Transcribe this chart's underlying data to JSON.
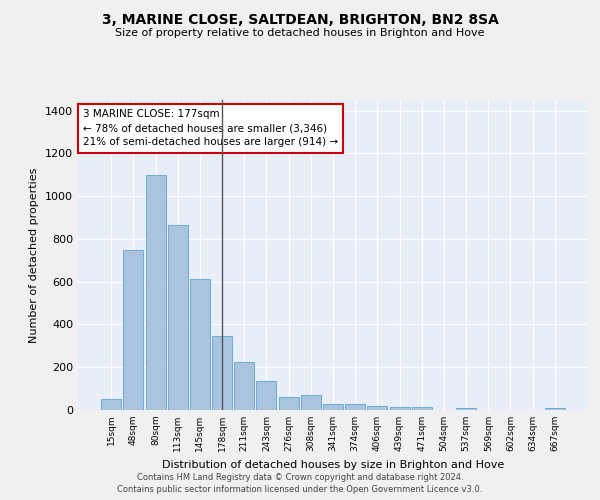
{
  "title": "3, MARINE CLOSE, SALTDEAN, BRIGHTON, BN2 8SA",
  "subtitle": "Size of property relative to detached houses in Brighton and Hove",
  "xlabel": "Distribution of detached houses by size in Brighton and Hove",
  "ylabel": "Number of detached properties",
  "categories": [
    "15sqm",
    "48sqm",
    "80sqm",
    "113sqm",
    "145sqm",
    "178sqm",
    "211sqm",
    "243sqm",
    "276sqm",
    "308sqm",
    "341sqm",
    "374sqm",
    "406sqm",
    "439sqm",
    "471sqm",
    "504sqm",
    "537sqm",
    "569sqm",
    "602sqm",
    "634sqm",
    "667sqm"
  ],
  "values": [
    50,
    750,
    1100,
    865,
    615,
    345,
    225,
    135,
    60,
    70,
    30,
    30,
    20,
    12,
    15,
    0,
    10,
    0,
    0,
    0,
    10
  ],
  "bar_color": "#aac4e0",
  "bar_edge_color": "#6aaad4",
  "marker_index": 5,
  "annotation_line1": "3 MARINE CLOSE: 177sqm",
  "annotation_line2": "← 78% of detached houses are smaller (3,346)",
  "annotation_line3": "21% of semi-detached houses are larger (914) →",
  "annotation_box_color": "#ffffff",
  "annotation_box_edge": "#cc0000",
  "marker_line_color": "#555555",
  "ylim": [
    0,
    1450
  ],
  "background_color": "#e8eef8",
  "fig_background_color": "#f0f0f0",
  "grid_color": "#ffffff",
  "yticks": [
    0,
    200,
    400,
    600,
    800,
    1000,
    1200,
    1400
  ],
  "footer_line1": "Contains HM Land Registry data © Crown copyright and database right 2024.",
  "footer_line2": "Contains public sector information licensed under the Open Government Licence v3.0."
}
